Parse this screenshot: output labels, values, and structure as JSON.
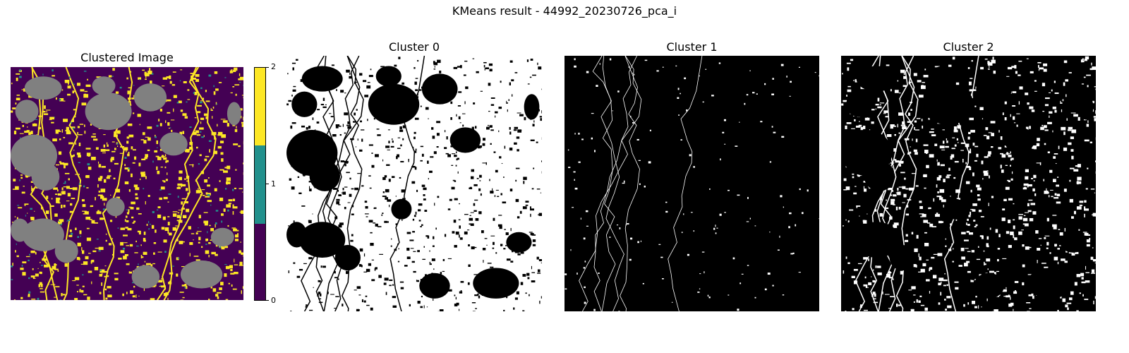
{
  "figure": {
    "suptitle": "KMeans result - 44992_20230726_pca_i"
  },
  "chart_data": [
    {
      "type": "heatmap",
      "title": "Clustered Image",
      "axes": "off",
      "description_classes": [
        0,
        1,
        2
      ],
      "masked_color": "#808080",
      "colormap": {
        "0": "#440154",
        "1": "#21908c",
        "2": "#fde725"
      },
      "colorbar": {
        "ticks": [
          "0",
          "1",
          "2"
        ],
        "range": [
          0,
          2
        ]
      }
    },
    {
      "type": "heatmap",
      "title": "Cluster 0",
      "axes": "off",
      "colormap": {
        "0": "#000000",
        "1": "#ffffff"
      },
      "foreground_fraction": 0.78
    },
    {
      "type": "heatmap",
      "title": "Cluster 1",
      "axes": "off",
      "colormap": {
        "0": "#000000",
        "1": "#ffffff"
      },
      "foreground_fraction": 0.03
    },
    {
      "type": "heatmap",
      "title": "Cluster 2",
      "axes": "off",
      "colormap": {
        "0": "#000000",
        "1": "#ffffff"
      },
      "foreground_fraction": 0.22
    }
  ]
}
